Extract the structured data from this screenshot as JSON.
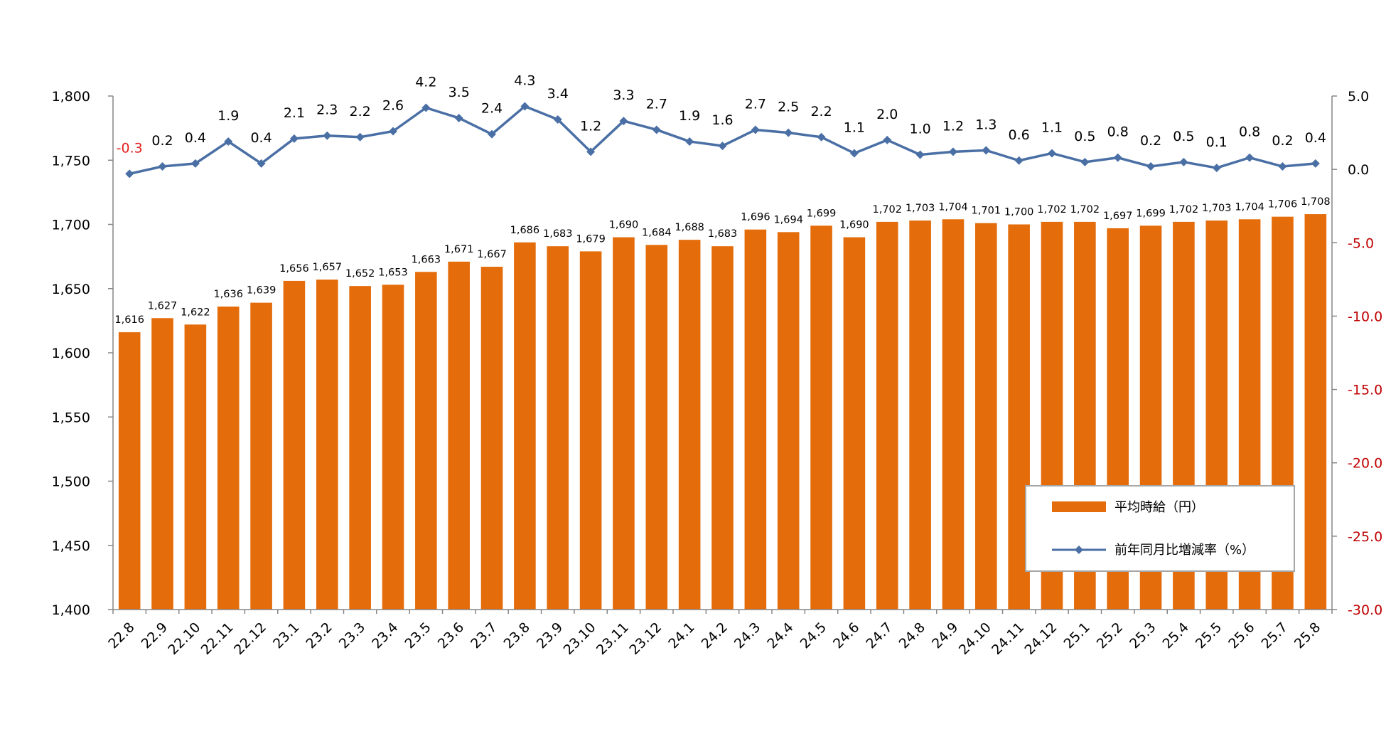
{
  "chart_data": {
    "type": "bar+line",
    "categories": [
      "22.8",
      "22.9",
      "22.10",
      "22.11",
      "22.12",
      "23.1",
      "23.2",
      "23.3",
      "23.4",
      "23.5",
      "23.6",
      "23.7",
      "23.8",
      "23.9",
      "23.10",
      "23.11",
      "23.12",
      "24.1",
      "24.2",
      "24.3",
      "24.4",
      "24.5",
      "24.6",
      "24.7",
      "24.8",
      "24.9",
      "24.10",
      "24.11",
      "24.12",
      "25.1",
      "25.2",
      "25.3",
      "25.4",
      "25.5",
      "25.6",
      "25.7",
      "25.8"
    ],
    "series": [
      {
        "name": "平均時給（円）",
        "type": "bar",
        "axis": "left",
        "color": "#E46C0A",
        "values": [
          1616,
          1627,
          1622,
          1636,
          1639,
          1656,
          1657,
          1652,
          1653,
          1663,
          1671,
          1667,
          1686,
          1683,
          1679,
          1690,
          1684,
          1688,
          1683,
          1696,
          1694,
          1699,
          1690,
          1702,
          1703,
          1704,
          1701,
          1700,
          1702,
          1702,
          1697,
          1699,
          1702,
          1703,
          1704,
          1706,
          1708
        ],
        "value_labels": [
          "1,616",
          "1,627",
          "1,622",
          "1,636",
          "1,639",
          "1,656",
          "1,657",
          "1,652",
          "1,653",
          "1,663",
          "1,671",
          "1,667",
          "1,686",
          "1,683",
          "1,679",
          "1,690",
          "1,684",
          "1,688",
          "1,683",
          "1,696",
          "1,694",
          "1,699",
          "1,690",
          "1,702",
          "1,703",
          "1,704",
          "1,701",
          "1,700",
          "1,702",
          "1,702",
          "1,697",
          "1,699",
          "1,702",
          "1,703",
          "1,704",
          "1,706",
          "1,708"
        ]
      },
      {
        "name": "前年同月比増減率（%）",
        "type": "line",
        "axis": "right",
        "color": "#4A6FA5",
        "marker": "diamond",
        "values": [
          -0.3,
          0.2,
          0.4,
          1.9,
          0.4,
          2.1,
          2.3,
          2.2,
          2.6,
          4.2,
          3.5,
          2.4,
          4.3,
          3.4,
          1.2,
          3.3,
          2.7,
          1.9,
          1.6,
          2.7,
          2.5,
          2.2,
          1.1,
          2.0,
          1.0,
          1.2,
          1.3,
          0.6,
          1.1,
          0.5,
          0.8,
          0.2,
          0.5,
          0.1,
          0.8,
          0.2,
          0.4
        ],
        "value_labels": [
          "-0.3",
          "0.2",
          "0.4",
          "1.9",
          "0.4",
          "2.1",
          "2.3",
          "2.2",
          "2.6",
          "4.2",
          "3.5",
          "2.4",
          "4.3",
          "3.4",
          "1.2",
          "3.3",
          "2.7",
          "1.9",
          "1.6",
          "2.7",
          "2.5",
          "2.2",
          "1.1",
          "2.0",
          "1.0",
          "1.2",
          "1.3",
          "0.6",
          "1.1",
          "0.5",
          "0.8",
          "0.2",
          "0.5",
          "0.1",
          "0.8",
          "0.2",
          "0.4"
        ]
      }
    ],
    "left_axis": {
      "ylim": [
        1400,
        1800
      ],
      "ticks": [
        1400,
        1450,
        1500,
        1550,
        1600,
        1650,
        1700,
        1750,
        1800
      ],
      "tick_labels": [
        "1,400",
        "1,450",
        "1,500",
        "1,550",
        "1,600",
        "1,650",
        "1,700",
        "1,750",
        "1,800"
      ]
    },
    "right_axis": {
      "ylim": [
        -30,
        5
      ],
      "ticks": [
        -30,
        -25,
        -20,
        -15,
        -10,
        -5,
        0,
        5
      ],
      "tick_labels": [
        "-30.0",
        "-25.0",
        "-20.0",
        "-15.0",
        "-10.0",
        "-5.0",
        "0.0",
        "5.0"
      ],
      "negative_color": "#C00000"
    },
    "grid": false,
    "legend_position": "bottom-right",
    "legend": [
      "平均時給（円）",
      "前年同月比増減率（%）"
    ],
    "title": "",
    "xlabel": "",
    "ylabel": ""
  }
}
